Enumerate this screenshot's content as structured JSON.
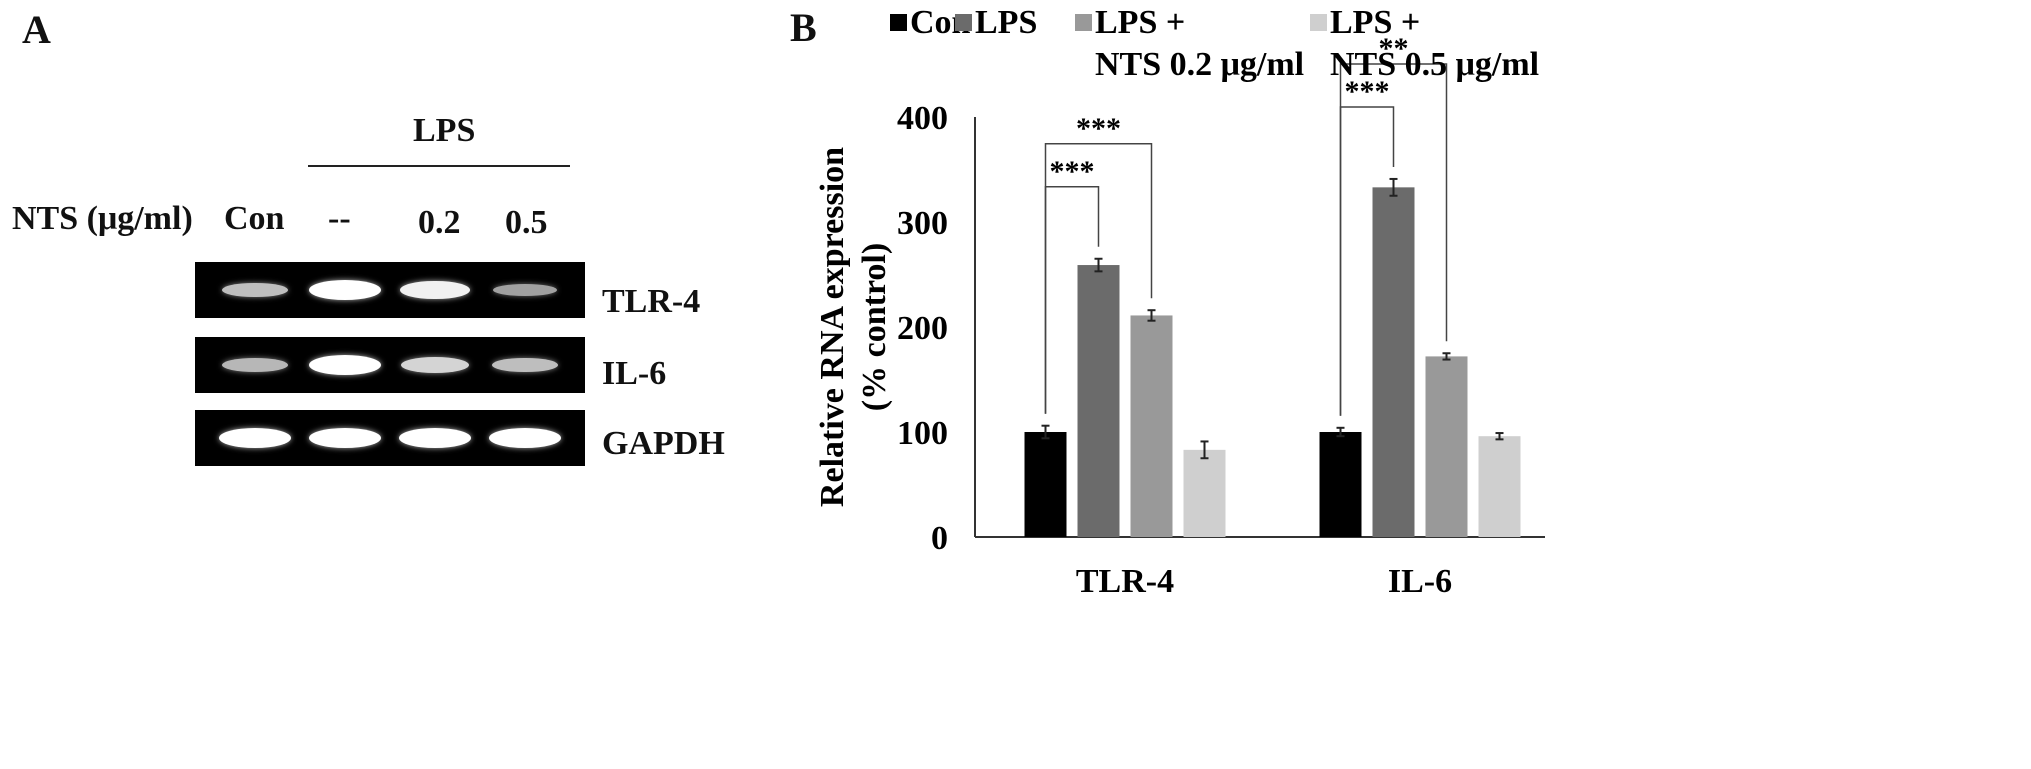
{
  "panel_a": {
    "letter": "A",
    "lps_label": "LPS",
    "nts_label": "NTS (μg/ml)",
    "lanes": [
      "Con",
      "--",
      "0.2",
      "0.5"
    ],
    "rows": [
      {
        "label": "TLR-4",
        "band_intensity": [
          0.55,
          1.0,
          0.9,
          0.35
        ]
      },
      {
        "label": "IL-6",
        "band_intensity": [
          0.5,
          1.0,
          0.7,
          0.55
        ]
      },
      {
        "label": "GAPDH",
        "band_intensity": [
          1.0,
          1.0,
          1.0,
          1.0
        ]
      }
    ]
  },
  "panel_b": {
    "letter": "B"
  },
  "chart_data": {
    "type": "bar",
    "categories": [
      "TLR-4",
      "IL-6"
    ],
    "series": [
      {
        "name": "Con",
        "values": [
          100,
          100
        ],
        "errors": [
          6,
          4
        ],
        "color": "#000000"
      },
      {
        "name": "LPS",
        "values": [
          259,
          333
        ],
        "errors": [
          6,
          8
        ],
        "color": "#6b6b6b"
      },
      {
        "name": "LPS + NTS 0.2 μg/ml",
        "values": [
          211,
          172
        ],
        "errors": [
          5,
          3
        ],
        "color": "#999999"
      },
      {
        "name": "LPS + NTS 0.5 μg/ml",
        "values": [
          83,
          96
        ],
        "errors": [
          8,
          3
        ],
        "color": "#cfcfcf"
      }
    ],
    "legend": [
      {
        "lines": [
          "Con"
        ]
      },
      {
        "lines": [
          "LPS"
        ]
      },
      {
        "lines": [
          "LPS +",
          "NTS 0.2 μg/ml"
        ]
      },
      {
        "lines": [
          "LPS +",
          "NTS 0.5 μg/ml"
        ]
      }
    ],
    "ylabel": [
      "Relative RNA expression",
      "(% control)"
    ],
    "ylim": [
      0,
      400
    ],
    "yticks": [
      0,
      100,
      200,
      300,
      400
    ],
    "legend_position": "top",
    "grid": false,
    "annotations": [
      {
        "category": 0,
        "from_series": 0,
        "to_series": 1,
        "text": "***"
      },
      {
        "category": 0,
        "from_series": 0,
        "to_series": 2,
        "text": "***"
      },
      {
        "category": 1,
        "from_series": 0,
        "to_series": 1,
        "text": "***"
      },
      {
        "category": 1,
        "from_series": 0,
        "to_series": 2,
        "text": "**"
      }
    ]
  }
}
